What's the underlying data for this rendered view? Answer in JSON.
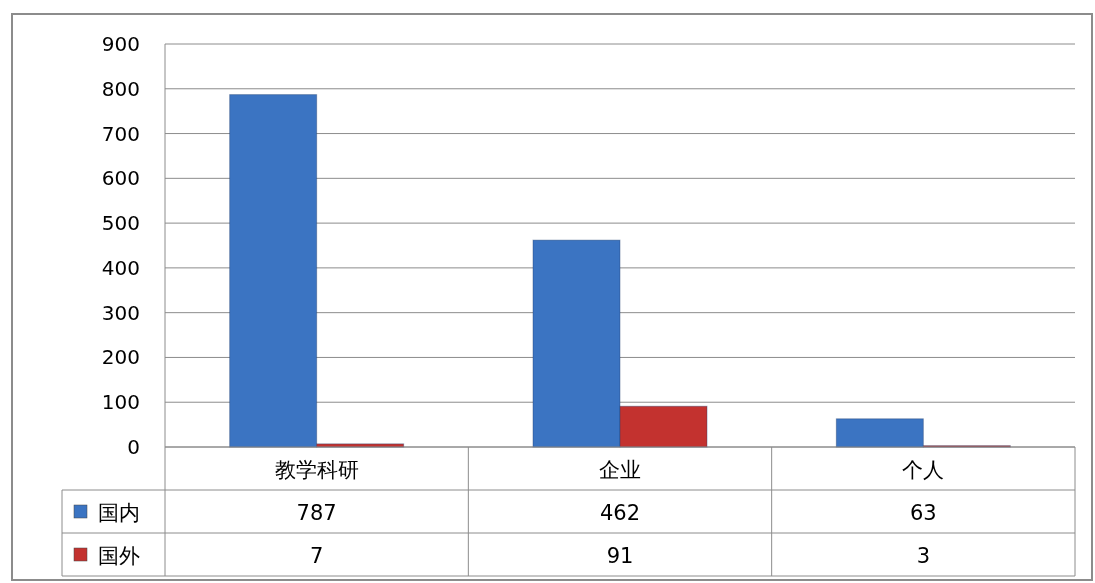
{
  "chart_data": {
    "type": "bar",
    "categories": [
      "教学科研",
      "企业",
      "个人"
    ],
    "series": [
      {
        "name": "国内",
        "color": "#3b74c2",
        "values": [
          787,
          462,
          63
        ]
      },
      {
        "name": "国外",
        "color": "#c3322f",
        "values": [
          7,
          91,
          3
        ]
      }
    ],
    "ylim": [
      0,
      900
    ],
    "yticks": [
      0,
      100,
      200,
      300,
      400,
      500,
      600,
      700,
      800,
      900
    ],
    "grid": "y",
    "legend": "bottom",
    "data_labels": true
  }
}
